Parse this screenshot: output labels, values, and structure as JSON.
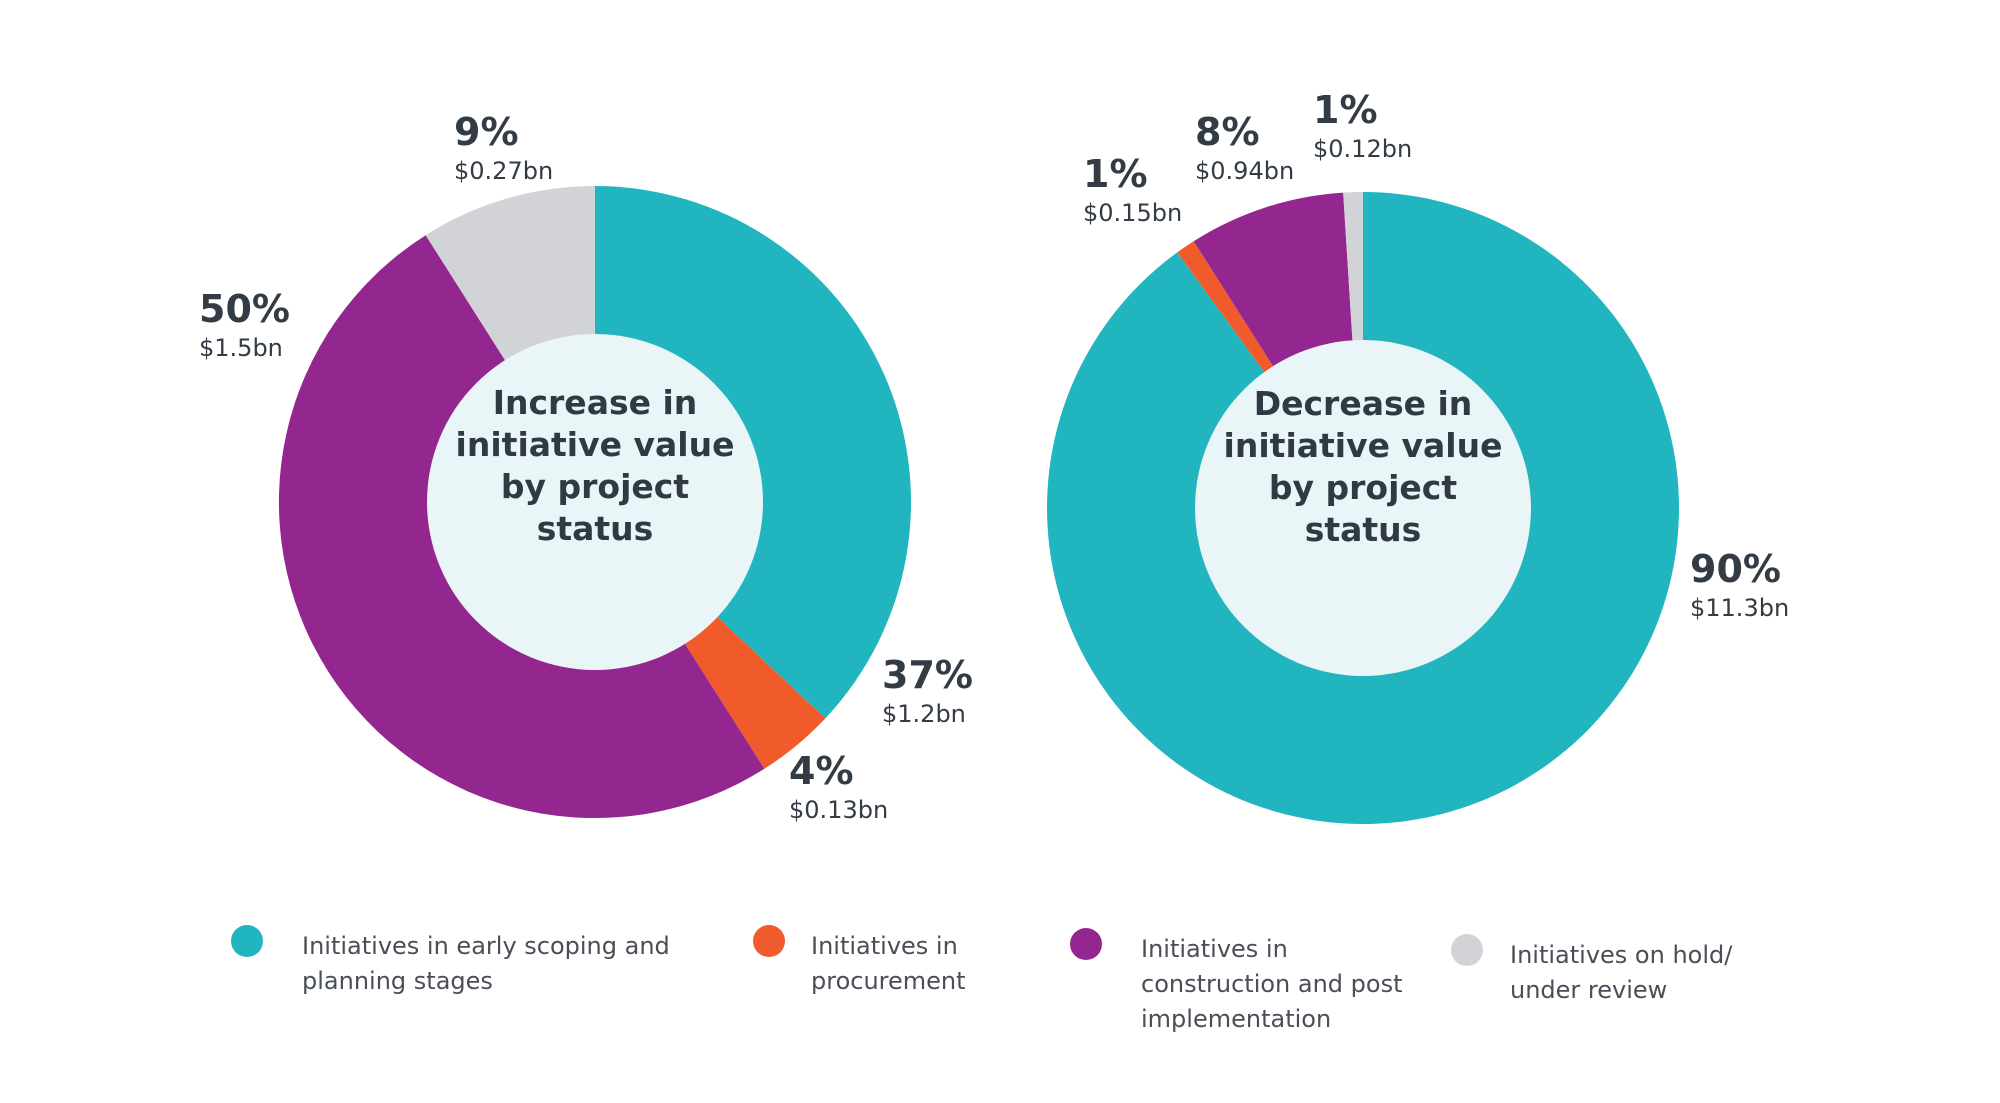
{
  "colors": {
    "teal": "#20b5bf",
    "orange": "#f15a2b",
    "purple": "#93278f",
    "gray": "#d1d3d7",
    "center_fill": "#eaf5f7"
  },
  "legend": [
    {
      "label_lines": [
        "Initiatives in early scoping and",
        "planning stages"
      ],
      "color": "#20b5bf"
    },
    {
      "label_lines": [
        "Initiatives in",
        "procurement"
      ],
      "color": "#f15a2b"
    },
    {
      "label_lines": [
        "Initiatives in",
        "construction and post",
        "implementation"
      ],
      "color": "#93278f"
    },
    {
      "label_lines": [
        "Initiatives on hold/",
        "under review"
      ],
      "color": "#d1d3d7"
    }
  ],
  "chart_data": [
    {
      "type": "pie",
      "style": "donut",
      "center_title_lines": [
        "Increase in",
        "initiative value",
        "by project",
        "status"
      ],
      "categories": [
        "Initiatives in early scoping and planning stages",
        "Initiatives in procurement",
        "Initiatives in construction and post implementation",
        "Initiatives on hold/ under review"
      ],
      "values": [
        37,
        4,
        50,
        9
      ],
      "percent_labels": [
        "37%",
        "4%",
        "50%",
        "9%"
      ],
      "value_labels": [
        "$1.2bn",
        "$0.13bn",
        "$1.5bn",
        "$0.27bn"
      ],
      "colors": [
        "#20b5bf",
        "#f15a2b",
        "#93278f",
        "#d1d3d7"
      ],
      "start": "top",
      "direction": "clockwise",
      "legend_position": "bottom"
    },
    {
      "type": "pie",
      "style": "donut",
      "center_title_lines": [
        "Decrease in",
        "initiative value",
        "by project",
        "status"
      ],
      "categories": [
        "Initiatives in early scoping and planning stages",
        "Initiatives in procurement",
        "Initiatives in construction and post implementation",
        "Initiatives on hold/ under review"
      ],
      "values": [
        90,
        1,
        8,
        1
      ],
      "percent_labels": [
        "90%",
        "1%",
        "8%",
        "1%"
      ],
      "value_labels": [
        "$11.3bn",
        "$0.15bn",
        "$0.94bn",
        "$0.12bn"
      ],
      "colors": [
        "#20b5bf",
        "#f15a2b",
        "#93278f",
        "#d1d3d7"
      ],
      "start": "top",
      "direction": "clockwise",
      "legend_position": "bottom"
    }
  ]
}
